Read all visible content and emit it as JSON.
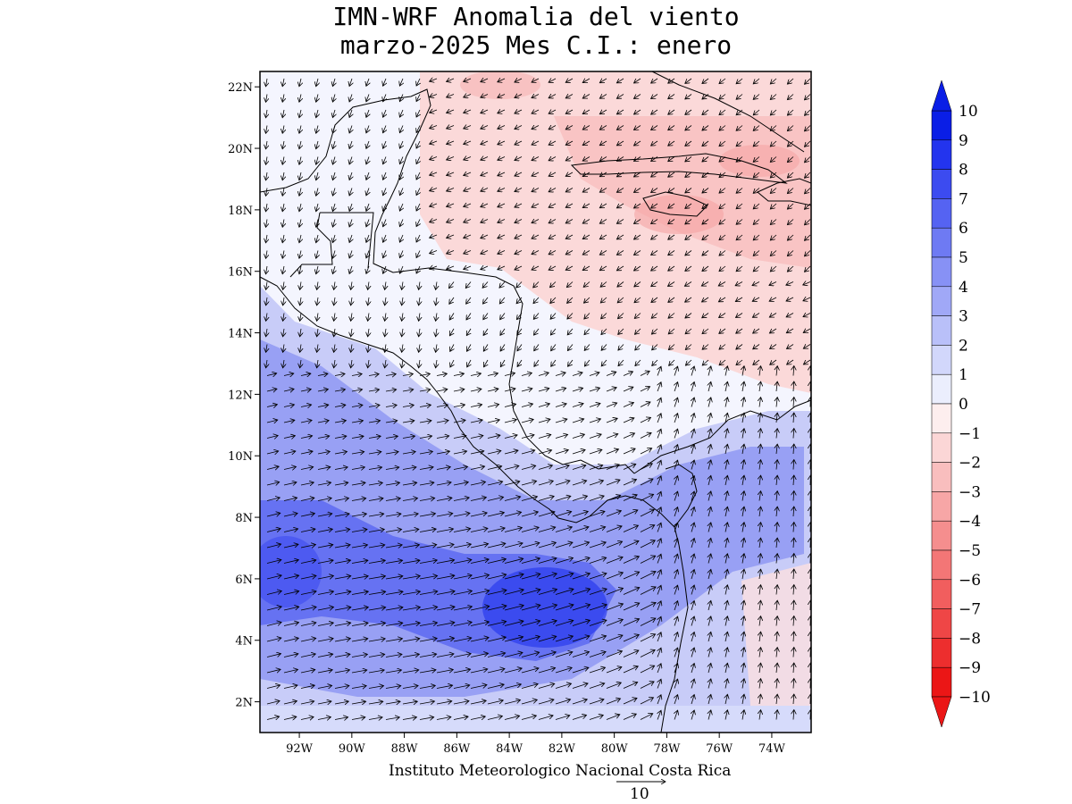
{
  "title": {
    "line1": "IMN-WRF Anomalia del viento",
    "line2": "marzo-2025 Mes C.I.: enero"
  },
  "map": {
    "lon_range": [
      -93.5,
      -72.5
    ],
    "lat_range": [
      1.0,
      22.5
    ],
    "lon_ticks": [
      "92W",
      "90W",
      "88W",
      "86W",
      "84W",
      "82W",
      "80W",
      "78W",
      "76W",
      "74W"
    ],
    "lon_tick_values": [
      -92,
      -90,
      -88,
      -86,
      -84,
      -82,
      -80,
      -78,
      -76,
      -74
    ],
    "lat_ticks": [
      "2N",
      "4N",
      "6N",
      "8N",
      "10N",
      "12N",
      "14N",
      "16N",
      "18N",
      "20N",
      "22N"
    ],
    "lat_tick_values": [
      2,
      4,
      6,
      8,
      10,
      12,
      14,
      16,
      18,
      20,
      22
    ]
  },
  "colorbar": {
    "labels": [
      "10",
      "9",
      "8",
      "7",
      "6",
      "5",
      "4",
      "3",
      "2",
      "1",
      "0",
      "−1",
      "−2",
      "−3",
      "−4",
      "−5",
      "−6",
      "−7",
      "−8",
      "−9",
      "−10"
    ],
    "positive_colors": [
      "#0a1ee6",
      "#2334ee",
      "#3c4bf0",
      "#5563f2",
      "#6e7af3",
      "#8791f5",
      "#a0a8f7",
      "#b9c0f9",
      "#d2d7fb",
      "#ebeefd"
    ],
    "negative_colors": [
      "#fdeeee",
      "#fbd6d6",
      "#f9bebe",
      "#f7a6a6",
      "#f58e8e",
      "#f37676",
      "#f15e5e",
      "#ef4646",
      "#ed2e2e",
      "#eb1616"
    ]
  },
  "footer": {
    "credit": "Instituto Meteorologico Nacional Costa Rica",
    "reference_vector_label": "10"
  }
}
